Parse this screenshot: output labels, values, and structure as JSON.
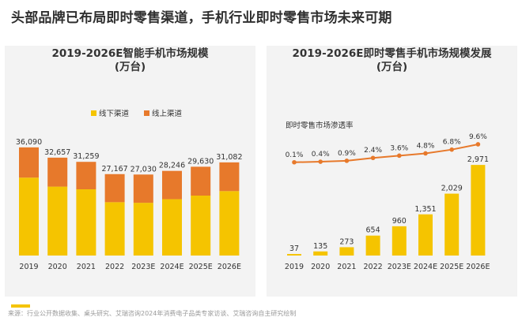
{
  "headline": "头部品牌已布局即时零售渠道，手机行业即时零售市场未来可期",
  "footnote": "来源：行业公开数据收集、桌头研究、艾瑞咨询2024年消费电子品类专家访谈、艾瑞咨询自主研究绘制",
  "colors": {
    "offline": "#f5c400",
    "online": "#e7792b",
    "line": "#e7792b",
    "bars": "#f5c400"
  },
  "chart_data": [
    {
      "type": "bar",
      "title": "2019-2026E智能手机市场规模",
      "subtitle": "(万台)",
      "categories": [
        "2019",
        "2020",
        "2021",
        "2022",
        "2023E",
        "2024E",
        "2025E",
        "2026E"
      ],
      "legend": [
        "线下渠道",
        "线上渠道"
      ],
      "legend_position": "top-right",
      "totals": [
        36090,
        32657,
        31259,
        27167,
        27030,
        28246,
        29630,
        31082
      ],
      "total_labels": [
        "36,090",
        "32,657",
        "31,259",
        "27,167",
        "27,030",
        "28,246",
        "29,630",
        "31,082"
      ],
      "series": [
        {
          "name": "线下渠道",
          "values": [
            26000,
            23000,
            22100,
            17800,
            17600,
            18800,
            20000,
            21500
          ]
        },
        {
          "name": "线上渠道",
          "values": [
            10090,
            9657,
            9159,
            9367,
            9430,
            9446,
            9630,
            9582
          ]
        }
      ],
      "stacked": true
    },
    {
      "type": "bar+line",
      "title": "2019-2026E即时零售手机市场规模发展",
      "subtitle": "(万台)",
      "categories": [
        "2019",
        "2020",
        "2021",
        "2022",
        "2023E",
        "2024E",
        "2025E",
        "2026E"
      ],
      "bars": {
        "values": [
          37,
          135,
          273,
          654,
          960,
          1351,
          2029,
          2971
        ],
        "labels": [
          "37",
          "135",
          "273",
          "654",
          "960",
          "1,351",
          "2,029",
          "2,971"
        ]
      },
      "line": {
        "name": "即时零售市场渗透率",
        "values": [
          0.1,
          0.4,
          0.9,
          2.4,
          3.6,
          4.8,
          6.8,
          9.6
        ],
        "labels": [
          "0.1%",
          "0.4%",
          "0.9%",
          "2.4%",
          "3.6%",
          "4.8%",
          "6.8%",
          "9.6%"
        ]
      }
    }
  ]
}
